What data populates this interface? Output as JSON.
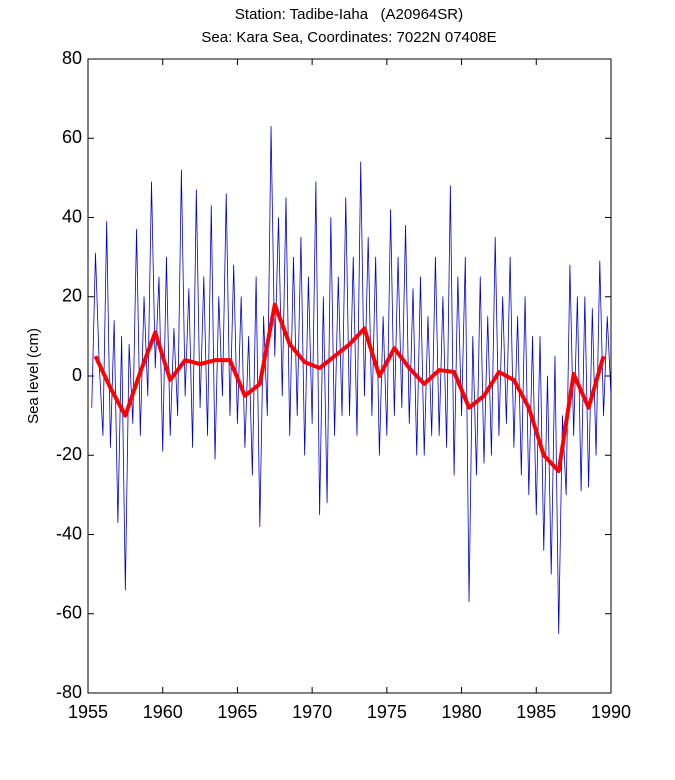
{
  "chart_data": {
    "type": "line",
    "title": "Station: Tadibe-Iaha   (A20964SR)",
    "subtitle": "Sea: Kara Sea, Coordinates: 7022N 07408E",
    "y_label": "Sea level (cm)",
    "xlim": [
      1955,
      1990
    ],
    "xticks": [
      1955,
      1960,
      1965,
      1970,
      1975,
      1980,
      1985,
      1990
    ],
    "ylim": [
      -80,
      80
    ],
    "yticks": [
      -80,
      -60,
      -40,
      -20,
      0,
      20,
      40,
      60,
      80
    ],
    "series": [
      {
        "color": "#0000cc",
        "width": 0.8,
        "x": [
          1955.25,
          1955.5,
          1955.75,
          1956,
          1956.25,
          1956.5,
          1956.75,
          1957,
          1957.25,
          1957.5,
          1957.75,
          1958,
          1958.25,
          1958.5,
          1958.75,
          1959,
          1959.25,
          1959.5,
          1959.75,
          1960,
          1960.25,
          1960.5,
          1960.75,
          1961,
          1961.25,
          1961.5,
          1961.75,
          1962,
          1962.25,
          1962.5,
          1962.75,
          1963,
          1963.25,
          1963.5,
          1963.75,
          1964,
          1964.25,
          1964.5,
          1964.75,
          1965,
          1965.25,
          1965.5,
          1965.75,
          1966,
          1966.25,
          1966.5,
          1966.75,
          1967,
          1967.25,
          1967.5,
          1967.75,
          1968,
          1968.25,
          1968.5,
          1968.75,
          1969,
          1969.25,
          1969.5,
          1969.75,
          1970,
          1970.25,
          1970.5,
          1970.75,
          1971,
          1971.25,
          1971.5,
          1971.75,
          1972,
          1972.25,
          1972.5,
          1972.75,
          1973,
          1973.25,
          1973.5,
          1973.75,
          1974,
          1974.25,
          1974.5,
          1974.75,
          1975,
          1975.25,
          1975.5,
          1975.75,
          1976,
          1976.25,
          1976.5,
          1976.75,
          1977,
          1977.25,
          1977.5,
          1977.75,
          1978,
          1978.25,
          1978.5,
          1978.75,
          1979,
          1979.25,
          1979.5,
          1979.75,
          1980,
          1980.25,
          1980.5,
          1980.75,
          1981,
          1981.25,
          1981.5,
          1981.75,
          1982,
          1982.25,
          1982.5,
          1982.75,
          1983,
          1983.25,
          1983.5,
          1983.75,
          1984,
          1984.25,
          1984.5,
          1984.75,
          1985,
          1985.25,
          1985.5,
          1985.75,
          1986,
          1986.25,
          1986.5,
          1986.75,
          1987,
          1987.25,
          1987.5,
          1987.75,
          1988,
          1988.25,
          1988.5,
          1988.75,
          1989,
          1989.25,
          1989.5,
          1989.75,
          1990
        ],
        "values": [
          -8,
          31,
          3,
          -15,
          39,
          -18,
          14,
          -37,
          10,
          -54,
          8,
          -12,
          37,
          -15,
          20,
          -5,
          49,
          2,
          25,
          -19,
          30,
          -15,
          12,
          -10,
          52,
          -5,
          22,
          -18,
          47,
          -8,
          25,
          -15,
          43,
          -21,
          20,
          -5,
          46,
          -10,
          28,
          -12,
          20,
          -18,
          10,
          -25,
          25,
          -38,
          15,
          -10,
          63,
          5,
          40,
          -5,
          45,
          -15,
          30,
          -10,
          35,
          -20,
          25,
          -12,
          49,
          -35,
          20,
          -32,
          40,
          -15,
          25,
          -10,
          45,
          -10,
          30,
          -15,
          54,
          -5,
          35,
          -10,
          30,
          -20,
          15,
          -15,
          42,
          -10,
          30,
          -8,
          38,
          -12,
          22,
          -20,
          25,
          -20,
          15,
          -15,
          30,
          -15,
          20,
          -18,
          48,
          -25,
          25,
          -10,
          30,
          -57,
          10,
          -25,
          25,
          -22,
          15,
          -20,
          35,
          -15,
          20,
          -12,
          30,
          -18,
          15,
          -25,
          20,
          -30,
          10,
          -35,
          10,
          -44,
          0,
          -50,
          5,
          -65,
          -10,
          -30,
          28,
          -15,
          20,
          -29,
          20,
          -28,
          17,
          -20,
          29,
          -10,
          15,
          -5
        ]
      },
      {
        "color": "#ff0000",
        "width": 4,
        "x": [
          1955.5,
          1956.5,
          1957.5,
          1958.5,
          1959.5,
          1960.5,
          1961.5,
          1962.5,
          1963.5,
          1964.5,
          1965.5,
          1966.5,
          1967.5,
          1968.5,
          1969.5,
          1970.5,
          1971.5,
          1972.5,
          1973.5,
          1974.5,
          1975.5,
          1976.5,
          1977.5,
          1978.5,
          1979.5,
          1980.5,
          1981.5,
          1982.5,
          1983.5,
          1984.5,
          1985.5,
          1986.5,
          1987.5,
          1988.5,
          1989.5
        ],
        "values": [
          5,
          -3,
          -10,
          1,
          11,
          -1,
          4,
          3,
          4,
          4,
          -5,
          -2,
          18,
          8,
          3.5,
          2,
          5,
          8,
          12,
          0,
          7,
          2,
          -2,
          1.5,
          1,
          -8,
          -5,
          1,
          -1,
          -8,
          -20,
          -24,
          0.5,
          -8,
          5
        ]
      }
    ]
  }
}
